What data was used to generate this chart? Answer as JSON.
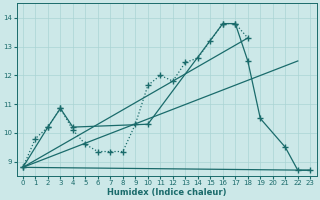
{
  "xlabel": "Humidex (Indice chaleur)",
  "xlim": [
    -0.5,
    23.5
  ],
  "ylim": [
    8.5,
    14.5
  ],
  "yticks": [
    9,
    10,
    11,
    12,
    13,
    14
  ],
  "xticks": [
    0,
    1,
    2,
    3,
    4,
    5,
    6,
    7,
    8,
    9,
    10,
    11,
    12,
    13,
    14,
    15,
    16,
    17,
    18,
    19,
    20,
    21,
    22,
    23
  ],
  "bg_color": "#cce8e8",
  "line_color": "#1a6b6b",
  "grid_color": "#b0d8d8",
  "series0_x": [
    0,
    1,
    2,
    3,
    4,
    5,
    6,
    7,
    8,
    9,
    10,
    11,
    12,
    13,
    14,
    15,
    16,
    17,
    18
  ],
  "series0_y": [
    8.8,
    9.8,
    10.2,
    10.85,
    10.1,
    9.6,
    9.35,
    9.35,
    9.35,
    10.3,
    11.65,
    12.0,
    11.8,
    12.45,
    12.6,
    13.2,
    13.8,
    13.8,
    13.3
  ],
  "series1_x": [
    0,
    2,
    3,
    4,
    10,
    16,
    17,
    18,
    19,
    21,
    22,
    23
  ],
  "series1_y": [
    8.8,
    10.2,
    10.85,
    10.2,
    10.3,
    13.8,
    13.8,
    12.5,
    10.5,
    9.5,
    8.7,
    8.7
  ],
  "line2_x": [
    0,
    23
  ],
  "line2_y": [
    8.8,
    8.7
  ],
  "line3_x": [
    0,
    18
  ],
  "line3_y": [
    8.8,
    13.3
  ],
  "line4_x": [
    0,
    22
  ],
  "line4_y": [
    8.8,
    12.5
  ]
}
